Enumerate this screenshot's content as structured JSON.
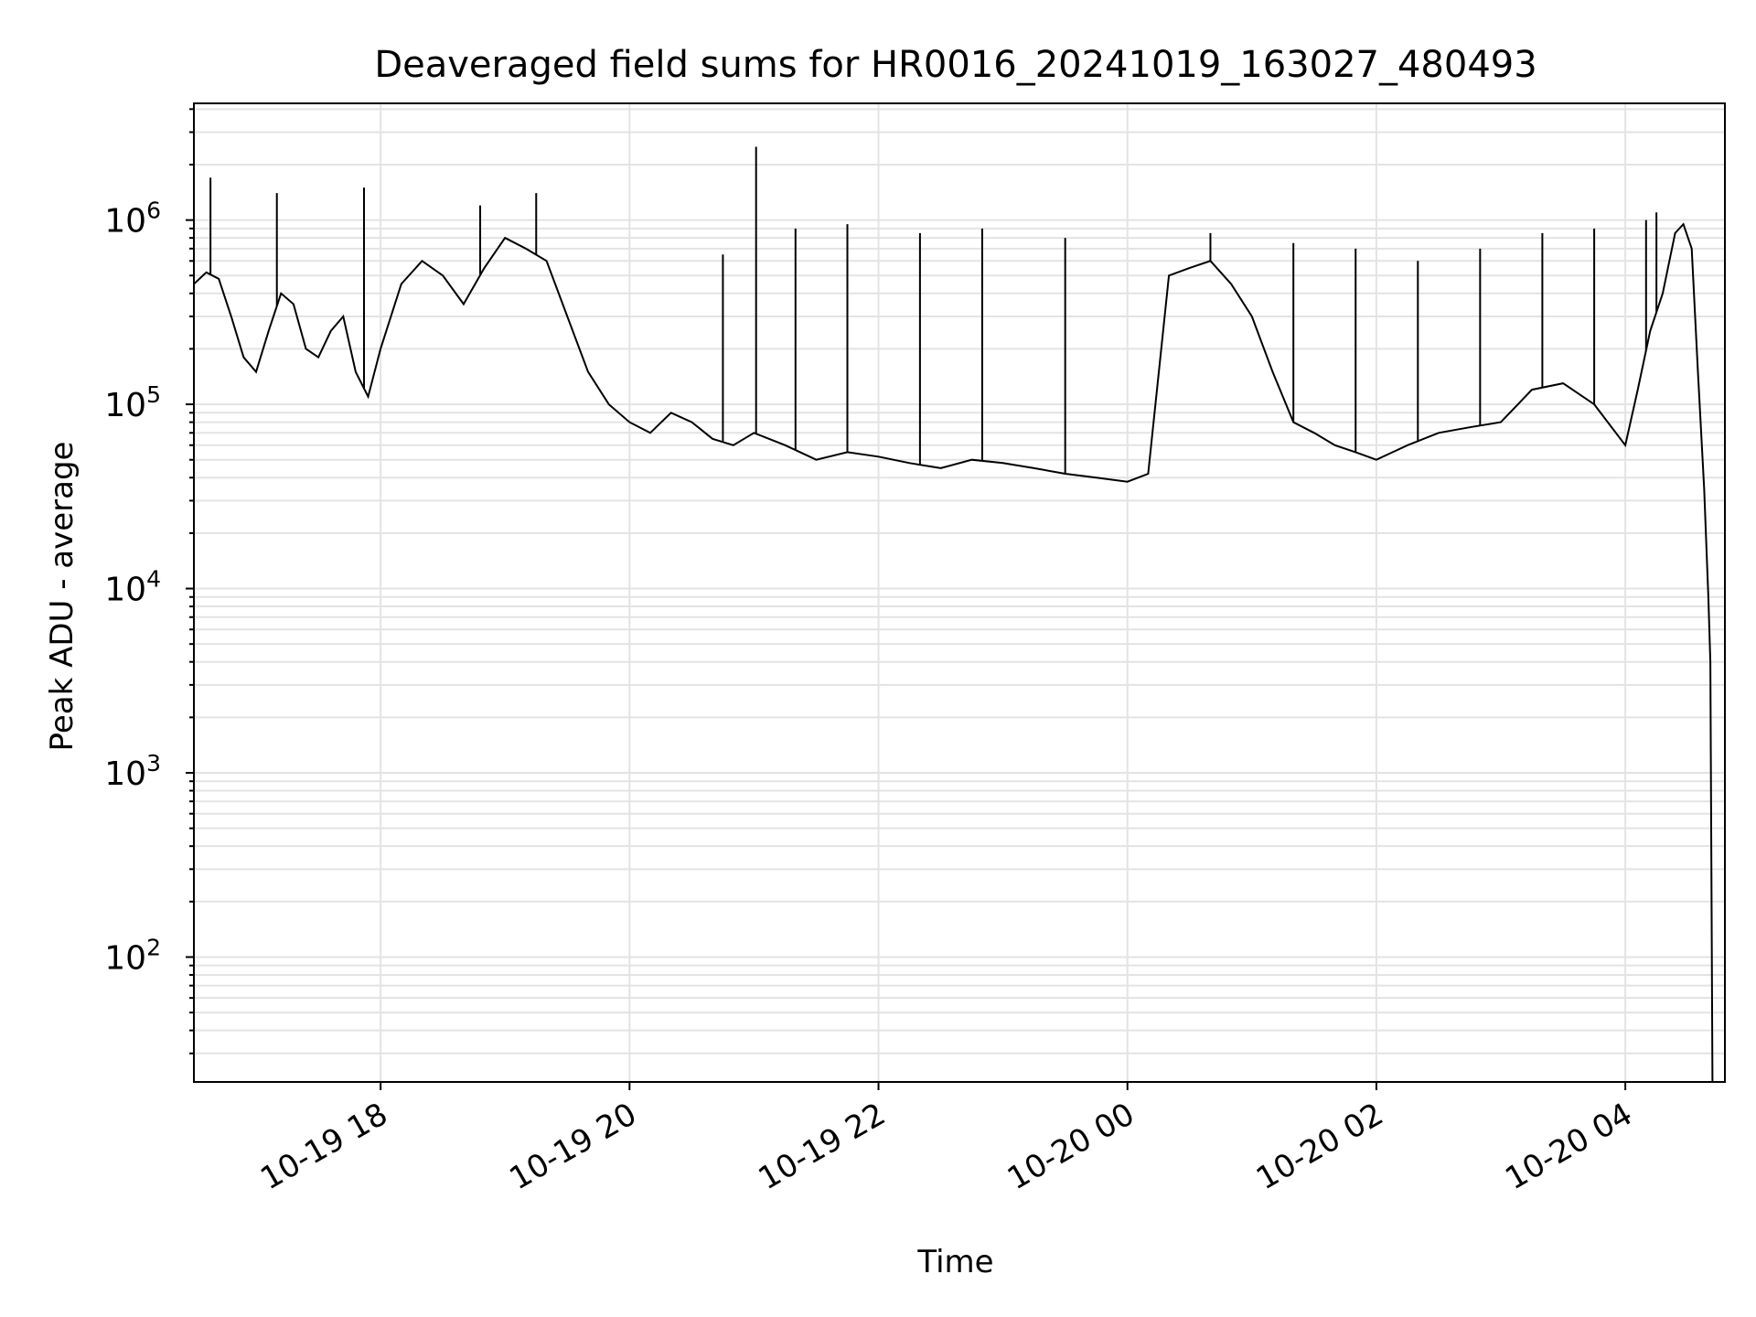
{
  "chart_data": {
    "type": "line",
    "title": "Deaveraged field sums for HR0016_20241019_163027_480493",
    "xlabel": "Time",
    "ylabel": "Peak ADU - average",
    "yscale": "log",
    "xlim": [
      "2024-10-19 16:30",
      "2024-10-20 04:48"
    ],
    "ylim": [
      21,
      4300000
    ],
    "grid": "on (major and minor)",
    "x_ticks": [
      {
        "value": "2024-10-19 18:00",
        "label": "10-19 18"
      },
      {
        "value": "2024-10-19 20:00",
        "label": "10-19 20"
      },
      {
        "value": "2024-10-19 22:00",
        "label": "10-19 22"
      },
      {
        "value": "2024-10-20 00:00",
        "label": "10-20 00"
      },
      {
        "value": "2024-10-20 02:00",
        "label": "10-20 02"
      },
      {
        "value": "2024-10-20 04:00",
        "label": "10-20 04"
      }
    ],
    "y_ticks": [
      {
        "value": 100,
        "base": "10",
        "exp": "2"
      },
      {
        "value": 1000,
        "base": "10",
        "exp": "3"
      },
      {
        "value": 10000,
        "base": "10",
        "exp": "4"
      },
      {
        "value": 100000,
        "base": "10",
        "exp": "5"
      },
      {
        "value": 1000000,
        "base": "10",
        "exp": "6"
      }
    ],
    "series": [
      {
        "color": "#000000",
        "x": [
          "2024-10-19 16:30",
          "2024-10-19 16:36",
          "2024-10-19 16:42",
          "2024-10-19 16:48",
          "2024-10-19 16:54",
          "2024-10-19 17:00",
          "2024-10-19 17:06",
          "2024-10-19 17:12",
          "2024-10-19 17:18",
          "2024-10-19 17:24",
          "2024-10-19 17:30",
          "2024-10-19 17:36",
          "2024-10-19 17:42",
          "2024-10-19 17:48",
          "2024-10-19 17:54",
          "2024-10-19 18:00",
          "2024-10-19 18:10",
          "2024-10-19 18:20",
          "2024-10-19 18:30",
          "2024-10-19 18:40",
          "2024-10-19 18:50",
          "2024-10-19 19:00",
          "2024-10-19 19:10",
          "2024-10-19 19:20",
          "2024-10-19 19:30",
          "2024-10-19 19:40",
          "2024-10-19 19:50",
          "2024-10-19 20:00",
          "2024-10-19 20:10",
          "2024-10-19 20:20",
          "2024-10-19 20:30",
          "2024-10-19 20:40",
          "2024-10-19 20:50",
          "2024-10-19 21:00",
          "2024-10-19 21:15",
          "2024-10-19 21:30",
          "2024-10-19 21:45",
          "2024-10-19 22:00",
          "2024-10-19 22:15",
          "2024-10-19 22:30",
          "2024-10-19 22:45",
          "2024-10-19 23:00",
          "2024-10-19 23:15",
          "2024-10-19 23:30",
          "2024-10-19 23:45",
          "2024-10-20 00:00",
          "2024-10-20 00:10",
          "2024-10-20 00:20",
          "2024-10-20 00:30",
          "2024-10-20 00:40",
          "2024-10-20 00:50",
          "2024-10-20 01:00",
          "2024-10-20 01:10",
          "2024-10-20 01:20",
          "2024-10-20 01:30",
          "2024-10-20 01:40",
          "2024-10-20 01:50",
          "2024-10-20 02:00",
          "2024-10-20 02:15",
          "2024-10-20 02:30",
          "2024-10-20 02:45",
          "2024-10-20 03:00",
          "2024-10-20 03:15",
          "2024-10-20 03:30",
          "2024-10-20 03:45",
          "2024-10-20 04:00",
          "2024-10-20 04:06",
          "2024-10-20 04:12",
          "2024-10-20 04:18",
          "2024-10-20 04:24",
          "2024-10-20 04:28",
          "2024-10-20 04:32",
          "2024-10-20 04:35",
          "2024-10-20 04:38",
          "2024-10-20 04:40",
          "2024-10-20 04:41",
          "2024-10-20 04:42"
        ],
        "y": [
          450000,
          520000,
          480000,
          300000,
          180000,
          150000,
          250000,
          400000,
          350000,
          200000,
          180000,
          250000,
          300000,
          150000,
          110000,
          200000,
          450000,
          600000,
          500000,
          350000,
          550000,
          800000,
          700000,
          600000,
          300000,
          150000,
          100000,
          80000,
          70000,
          90000,
          80000,
          65000,
          60000,
          70000,
          60000,
          50000,
          55000,
          52000,
          48000,
          45000,
          50000,
          48000,
          45000,
          42000,
          40000,
          38000,
          42000,
          500000,
          550000,
          600000,
          450000,
          300000,
          150000,
          80000,
          70000,
          60000,
          55000,
          50000,
          60000,
          70000,
          75000,
          80000,
          120000,
          130000,
          100000,
          60000,
          120000,
          250000,
          400000,
          850000,
          950000,
          700000,
          150000,
          35000,
          9000,
          4000,
          21
        ]
      }
    ],
    "spikes": [
      {
        "x": "2024-10-19 16:38",
        "y": 1700000
      },
      {
        "x": "2024-10-19 17:10",
        "y": 1400000
      },
      {
        "x": "2024-10-19 17:52",
        "y": 1500000
      },
      {
        "x": "2024-10-19 18:48",
        "y": 1200000
      },
      {
        "x": "2024-10-19 19:15",
        "y": 1400000
      },
      {
        "x": "2024-10-19 20:45",
        "y": 650000
      },
      {
        "x": "2024-10-19 21:01",
        "y": 2500000
      },
      {
        "x": "2024-10-19 21:20",
        "y": 900000
      },
      {
        "x": "2024-10-19 21:45",
        "y": 950000
      },
      {
        "x": "2024-10-19 22:20",
        "y": 850000
      },
      {
        "x": "2024-10-19 22:50",
        "y": 900000
      },
      {
        "x": "2024-10-19 23:30",
        "y": 800000
      },
      {
        "x": "2024-10-20 00:40",
        "y": 850000
      },
      {
        "x": "2024-10-20 01:20",
        "y": 750000
      },
      {
        "x": "2024-10-20 01:50",
        "y": 700000
      },
      {
        "x": "2024-10-20 02:20",
        "y": 600000
      },
      {
        "x": "2024-10-20 02:50",
        "y": 700000
      },
      {
        "x": "2024-10-20 03:20",
        "y": 850000
      },
      {
        "x": "2024-10-20 03:45",
        "y": 900000
      },
      {
        "x": "2024-10-20 04:10",
        "y": 1000000
      },
      {
        "x": "2024-10-20 04:15",
        "y": 1100000
      }
    ]
  }
}
